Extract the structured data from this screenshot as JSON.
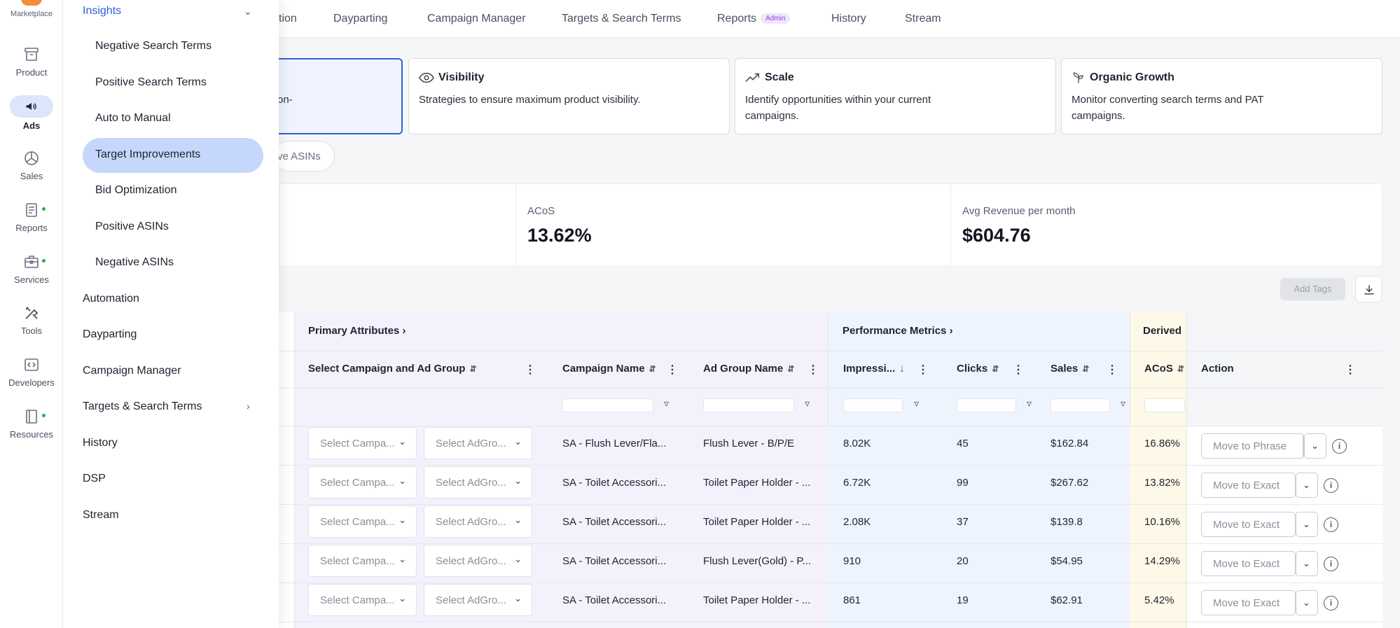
{
  "rail": {
    "top_label": "Marketplace",
    "items": [
      {
        "label": "Product",
        "icon": "archive-box-icon"
      },
      {
        "label": "Ads",
        "icon": "megaphone-icon",
        "active": true
      },
      {
        "label": "Sales",
        "icon": "pie-chart-icon"
      },
      {
        "label": "Reports",
        "icon": "report-doc-icon",
        "dot": true
      },
      {
        "label": "Services",
        "icon": "briefcase-icon",
        "dot": true
      },
      {
        "label": "Tools",
        "icon": "tools-icon"
      },
      {
        "label": "Developers",
        "icon": "code-icon"
      },
      {
        "label": "Resources",
        "icon": "book-icon",
        "dot": true
      }
    ]
  },
  "flyout": {
    "header": "Insights",
    "sub_items": [
      "Negative Search Terms",
      "Positive Search Terms",
      "Auto to Manual",
      "Target Improvements",
      "Bid Optimization",
      "Positive ASINs",
      "Negative ASINs"
    ],
    "selected": "Target Improvements",
    "items": [
      "Automation",
      "Dayparting",
      "Campaign Manager",
      "Targets & Search Terms",
      "History",
      "DSP",
      "Stream"
    ]
  },
  "tabs": {
    "partial_first": "tion",
    "items": [
      "Dayparting",
      "Campaign Manager",
      "Targets & Search Terms",
      "Reports",
      "History",
      "Stream"
    ],
    "reports_badge": "Admin"
  },
  "cards": {
    "first_partial_desc": "on-",
    "visibility": {
      "title": "Visibility",
      "desc": "Strategies to ensure maximum product visibility."
    },
    "scale": {
      "title": "Scale",
      "desc": "Identify opportunities within your current campaigns."
    },
    "organic": {
      "title": "Organic Growth",
      "desc": "Monitor converting search terms and PAT campaigns."
    }
  },
  "chip_partial": "ve ASINs",
  "kpis": {
    "acos": {
      "label": "ACoS",
      "value": "13.62%"
    },
    "avg_revenue": {
      "label": "Avg Revenue per month",
      "value": "$604.76"
    }
  },
  "toolbar": {
    "add_tags": "Add Tags"
  },
  "table": {
    "groups": {
      "primary": "Primary Attributes",
      "performance": "Performance Metrics",
      "derived": "Derived M"
    },
    "columns": {
      "select_campaign": "Select Campaign and Ad Group",
      "campaign_name": "Campaign Name",
      "ad_group_name": "Ad Group Name",
      "impressions": "Impressi...",
      "clicks": "Clicks",
      "sales": "Sales",
      "acos": "ACoS",
      "action": "Action"
    },
    "select_campaign_placeholder": "Select Campa...",
    "select_adgroup_placeholder": "Select AdGro...",
    "rows": [
      {
        "campaign": "SA - Flush Lever/Fla...",
        "ad_group": "Flush Lever - B/P/E",
        "impressions": "8.02K",
        "clicks": "45",
        "sales": "$162.84",
        "acos": "16.86%",
        "action": "Move to Phrase"
      },
      {
        "campaign": "SA - Toilet Accessori...",
        "ad_group": "Toilet Paper Holder - ...",
        "impressions": "6.72K",
        "clicks": "99",
        "sales": "$267.62",
        "acos": "13.82%",
        "action": "Move to Exact"
      },
      {
        "campaign": "SA - Toilet Accessori...",
        "ad_group": "Toilet Paper Holder - ...",
        "impressions": "2.08K",
        "clicks": "37",
        "sales": "$139.8",
        "acos": "10.16%",
        "action": "Move to Exact"
      },
      {
        "campaign": "SA - Toilet Accessori...",
        "ad_group": "Flush Lever(Gold) - P...",
        "impressions": "910",
        "clicks": "20",
        "sales": "$54.95",
        "acos": "14.29%",
        "action": "Move to Exact"
      },
      {
        "campaign": "SA - Toilet Accessori...",
        "ad_group": "Toilet Paper Holder - ...",
        "impressions": "861",
        "clicks": "19",
        "sales": "$62.91",
        "acos": "5.42%",
        "action": "Move to Exact"
      }
    ]
  },
  "colors": {
    "accent": "#2f61d6",
    "selected_menu": "#c5d8fb",
    "primary_band": "#f4f1fd",
    "perf_band": "#eef4fd",
    "derived_band": "#fdf8e7",
    "status_dot": "#22b14c"
  }
}
